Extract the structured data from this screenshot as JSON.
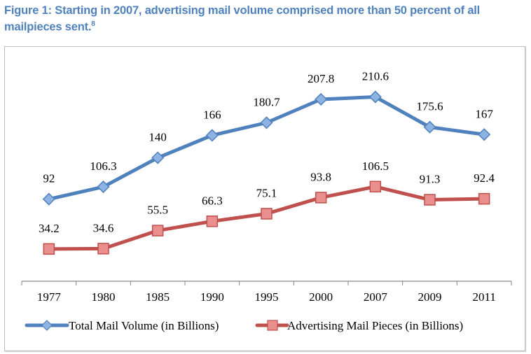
{
  "title": "Figure 1: Starting in 2007, advertising mail volume comprised more than 50 percent of all mailpieces sent.",
  "title_footnote": "8",
  "chart_data": {
    "type": "line",
    "title": "Figure 1: Starting in 2007, advertising mail volume comprised more than 50 percent of all mailpieces sent.",
    "xlabel": "",
    "ylabel": "",
    "categories": [
      "1977",
      "1980",
      "1985",
      "1990",
      "1995",
      "2000",
      "2007",
      "2009",
      "2011"
    ],
    "ylim": [
      0,
      230
    ],
    "grid": false,
    "legend_position": "bottom",
    "series": [
      {
        "name": "Total Mail Volume (in Billions)",
        "color": "#4f81bd",
        "marker": "diamond",
        "values": [
          92,
          106.3,
          140,
          166,
          180.7,
          207.8,
          210.6,
          175.6,
          167
        ],
        "labels": [
          "92",
          "106.3",
          "140",
          "166",
          "180.7",
          "207.8",
          "210.6",
          "175.6",
          "167"
        ]
      },
      {
        "name": "Advertising Mail Pieces (in Billions)",
        "color": "#c0504d",
        "marker": "square",
        "values": [
          34.2,
          34.6,
          55.5,
          66.3,
          75.1,
          93.8,
          106.5,
          91.3,
          92.4
        ],
        "labels": [
          "34.2",
          "34.6",
          "55.5",
          "66.3",
          "75.1",
          "93.8",
          "106.5",
          "91.3",
          "92.4"
        ]
      }
    ]
  }
}
